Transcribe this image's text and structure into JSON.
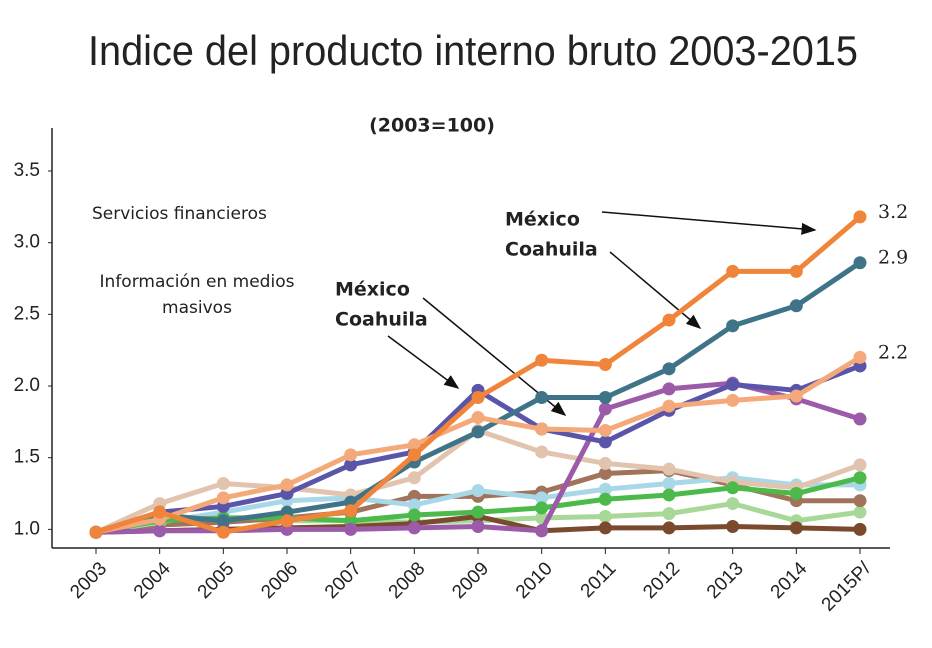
{
  "chart_data": {
    "type": "line",
    "title": "Indice del producto interno bruto 2003-2015",
    "subtitle": "(2003=100)",
    "annotations": [
      {
        "text": "Servicios financieros"
      },
      {
        "lines": [
          "Información en medios",
          "masivos"
        ]
      },
      {
        "lines": [
          "México",
          "Coahuila"
        ]
      },
      {
        "lines": [
          "México",
          "Coahuila"
        ]
      }
    ],
    "categories": [
      "2003",
      "2004",
      "2005",
      "2006",
      "2007",
      "2008",
      "2009",
      "2010",
      "2011",
      "2012",
      "2013",
      "2014",
      "2015P/"
    ],
    "ylim": [
      0.87,
      3.8
    ],
    "yticks": [
      {
        "value": 1,
        "label": "1.0"
      },
      1.5,
      {
        "value": 2,
        "label": "2.0"
      },
      2.5,
      {
        "value": 3,
        "label": "3.0"
      },
      3.5
    ],
    "series": [
      {
        "color": "#a8d898",
        "values": [
          0.98,
          1.04,
          1.07,
          1.06,
          1.06,
          1.05,
          1.06,
          1.08,
          1.09,
          1.11,
          1.18,
          1.06,
          1.12
        ]
      },
      {
        "color": "#7a4a2e",
        "values": [
          0.98,
          0.99,
          1.0,
          1.01,
          1.02,
          1.04,
          1.09,
          0.99,
          1.01,
          1.01,
          1.02,
          1.01,
          1.0
        ]
      },
      {
        "color": "#a0735a",
        "values": [
          0.98,
          1.03,
          1.05,
          1.08,
          1.12,
          1.23,
          1.23,
          1.26,
          1.39,
          1.41,
          1.31,
          1.2,
          1.2
        ]
      },
      {
        "color": "#a8d8e8",
        "values": [
          0.98,
          1.05,
          1.12,
          1.2,
          1.22,
          1.17,
          1.27,
          1.22,
          1.28,
          1.32,
          1.36,
          1.31,
          1.31
        ]
      },
      {
        "color": "#e2c4ae",
        "values": [
          0.98,
          1.18,
          1.32,
          1.29,
          1.24,
          1.36,
          1.69,
          1.54,
          1.46,
          1.42,
          1.33,
          1.29,
          1.45
        ]
      },
      {
        "color": "#4cba4a",
        "values": [
          0.98,
          1.06,
          1.08,
          1.08,
          1.06,
          1.1,
          1.12,
          1.15,
          1.21,
          1.24,
          1.29,
          1.25,
          1.36
        ]
      },
      {
        "color": "#9c5ba8",
        "values": [
          0.98,
          0.99,
          0.99,
          1.0,
          1.0,
          1.01,
          1.02,
          0.99,
          1.84,
          1.98,
          2.02,
          1.91,
          1.77
        ]
      },
      {
        "color": "#5a55a8",
        "values": [
          0.98,
          1.12,
          1.16,
          1.25,
          1.45,
          1.54,
          1.97,
          1.7,
          1.61,
          1.83,
          2.01,
          1.97,
          2.14
        ]
      },
      {
        "color": "#3f7488",
        "values": [
          0.98,
          1.1,
          1.06,
          1.12,
          1.19,
          1.47,
          1.68,
          1.92,
          1.92,
          2.12,
          2.42,
          2.56,
          2.86
        ],
        "value_labels": [
          null,
          null,
          null,
          null,
          null,
          null,
          null,
          null,
          null,
          null,
          null,
          null,
          "2.9"
        ]
      },
      {
        "color": "#f4a97a",
        "values": [
          0.98,
          1.07,
          1.22,
          1.31,
          1.52,
          1.59,
          1.78,
          1.7,
          1.69,
          1.86,
          1.9,
          1.93,
          2.2
        ],
        "value_labels": [
          null,
          null,
          null,
          null,
          null,
          null,
          null,
          null,
          null,
          null,
          null,
          null,
          "2.2"
        ]
      },
      {
        "color": "#f0843a",
        "values": [
          0.98,
          1.12,
          0.98,
          1.06,
          1.13,
          1.52,
          1.92,
          2.18,
          2.15,
          2.46,
          2.8,
          2.8,
          3.18
        ],
        "value_labels": [
          null,
          null,
          null,
          null,
          null,
          null,
          null,
          null,
          null,
          null,
          null,
          null,
          "3.2"
        ]
      }
    ]
  }
}
